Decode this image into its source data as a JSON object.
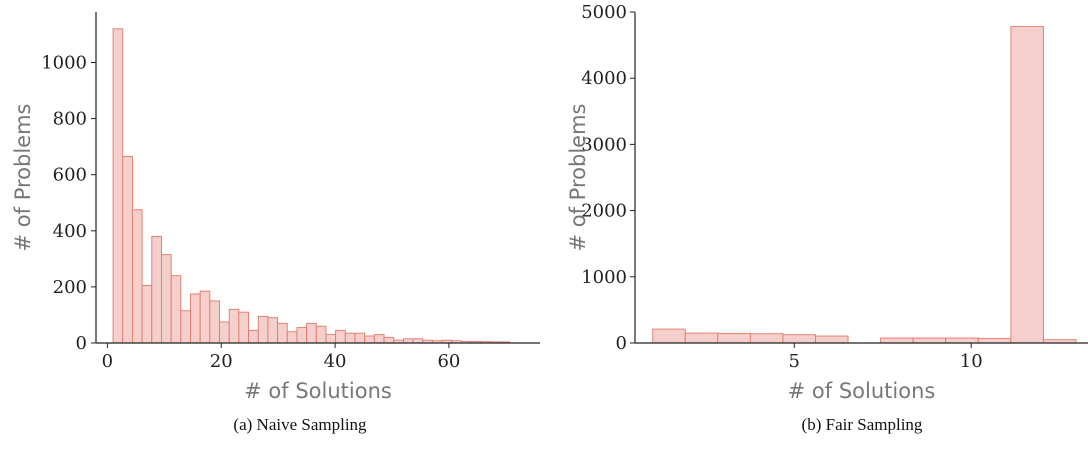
{
  "colors": {
    "bar_fill": "#f5cfcb",
    "bar_edge": "#e07a6a",
    "axis": "#222222"
  },
  "chart_data": [
    {
      "type": "bar",
      "subtype": "histogram",
      "caption": "(a) Naive Sampling",
      "xlabel": "# of Solutions",
      "ylabel": "# of Problems",
      "xlim": [
        -2,
        76
      ],
      "ylim": [
        0,
        1180
      ],
      "xticks": [
        0,
        20,
        40,
        60
      ],
      "yticks": [
        0,
        200,
        400,
        600,
        800,
        1000
      ],
      "bin_edges": [
        1,
        2.7,
        4.4,
        6.1,
        7.8,
        9.5,
        11.2,
        12.9,
        14.6,
        16.3,
        18.0,
        19.7,
        21.4,
        23.1,
        24.8,
        26.5,
        28.2,
        29.9,
        31.6,
        33.3,
        35.0,
        36.7,
        38.4,
        40.1,
        41.8,
        43.5,
        45.2,
        46.9,
        48.6,
        50.3,
        52.0,
        53.7,
        55.4,
        57.1,
        58.8,
        60.5,
        62.2,
        63.9,
        65.6,
        67.3,
        69.0,
        70.7
      ],
      "values": [
        1120,
        665,
        475,
        205,
        380,
        315,
        240,
        115,
        175,
        185,
        150,
        75,
        120,
        110,
        45,
        95,
        90,
        70,
        40,
        55,
        70,
        60,
        30,
        45,
        35,
        35,
        25,
        30,
        20,
        10,
        15,
        15,
        10,
        8,
        10,
        8,
        5,
        5,
        5,
        4,
        4
      ],
      "grid": false
    },
    {
      "type": "bar",
      "subtype": "histogram",
      "caption": "(b) Fair Sampling",
      "xlabel": "# of Solutions",
      "ylabel": "# of Problems",
      "xlim": [
        0.5,
        13.3
      ],
      "ylim": [
        0,
        5000
      ],
      "xticks": [
        5,
        10
      ],
      "yticks": [
        0,
        1000,
        2000,
        3000,
        4000,
        5000
      ],
      "bin_edges": [
        1,
        1.92,
        2.84,
        3.76,
        4.68,
        5.6,
        6.52,
        7.44,
        8.36,
        9.28,
        10.2,
        11.12,
        12.04,
        12.96
      ],
      "values": [
        210,
        150,
        145,
        140,
        125,
        105,
        0,
        75,
        75,
        75,
        70,
        4780,
        50
      ],
      "grid": false
    }
  ]
}
